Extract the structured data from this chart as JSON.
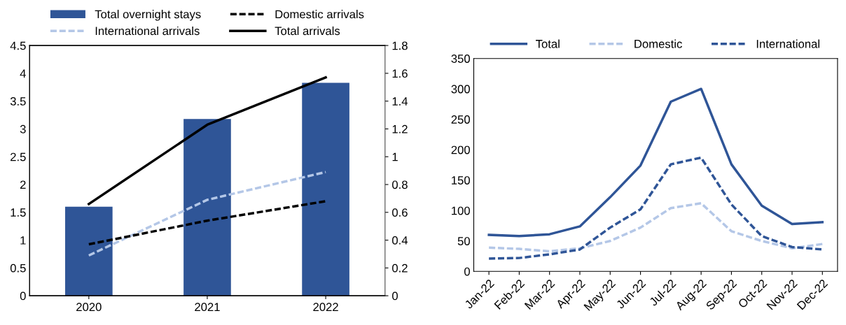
{
  "chart_data": [
    {
      "type": "bar",
      "categories": [
        "2020",
        "2021",
        "2022"
      ],
      "series": [
        {
          "name": "Total overnight stays",
          "type": "bar",
          "color": "#2f5597",
          "values": [
            1.6,
            3.18,
            3.83
          ]
        },
        {
          "name": "International arrivals",
          "type": "line",
          "axis": "y2",
          "color": "#b4c7e7",
          "line_style": "dashed",
          "values": [
            0.29,
            0.69,
            0.89
          ]
        },
        {
          "name": "Domestic arrivals",
          "type": "line",
          "axis": "y2",
          "color": "#000000",
          "line_style": "dashed",
          "values": [
            0.37,
            0.54,
            0.68
          ]
        },
        {
          "name": "Total arrivals",
          "type": "line",
          "axis": "y2",
          "color": "#000000",
          "line_style": "solid",
          "values": [
            0.66,
            1.23,
            1.57
          ]
        }
      ],
      "ylim": [
        0,
        4.5
      ],
      "yticks": [
        0,
        0.5,
        1,
        1.5,
        2,
        2.5,
        3,
        3.5,
        4,
        4.5
      ],
      "y2lim": [
        0,
        1.8
      ],
      "y2ticks": [
        0,
        {
          "value": 0.2,
          "label": "0.2"
        },
        0.4,
        0.6,
        0.8,
        1,
        1.2,
        1.4,
        1.6,
        1.8
      ],
      "legend": "top",
      "grid": false
    },
    {
      "type": "line",
      "categories": [
        "Jan-22",
        "Feb-22",
        "Mar-22",
        "Apr-22",
        "May-22",
        "Jun-22",
        "Jul-22",
        "Aug-22",
        "Sep-22",
        "Oct-22",
        "Nov-22",
        "Dec-22"
      ],
      "series": [
        {
          "name": "Total",
          "color": "#2f5597",
          "line_style": "solid",
          "values": [
            60,
            58,
            61,
            74,
            122,
            174,
            279,
            300,
            176,
            108,
            78,
            81
          ]
        },
        {
          "name": "Domestic",
          "color": "#b4c7e7",
          "line_style": "dashed",
          "values": [
            39,
            37,
            33,
            38,
            50,
            72,
            104,
            112,
            66,
            50,
            38,
            45
          ]
        },
        {
          "name": "International",
          "color": "#2f5597",
          "line_style": "dashed",
          "values": [
            21,
            22,
            28,
            36,
            72,
            102,
            176,
            187,
            110,
            58,
            40,
            36
          ]
        }
      ],
      "ylim": [
        0,
        350
      ],
      "yticks": [
        0,
        50,
        100,
        150,
        200,
        250,
        300,
        350
      ],
      "legend": "top",
      "grid": false
    }
  ]
}
